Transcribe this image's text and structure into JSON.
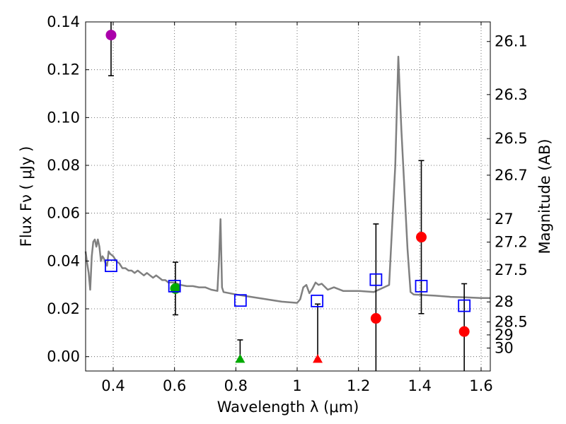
{
  "chart_data": {
    "type": "scatter",
    "title": "",
    "xlabel": "Wavelength  λ (μm)",
    "ylabel": "Flux  Fν  ( μJy )",
    "ylabel_right": "Magnitude (AB)",
    "xlim": [
      0.31,
      1.63
    ],
    "ylim": [
      -0.006,
      0.14
    ],
    "x_ticks": [
      0.4,
      0.6,
      0.8,
      1.0,
      1.2,
      1.4,
      1.6
    ],
    "x_tick_labels": [
      "0.4",
      "0.6",
      "0.8",
      "1",
      "1.2",
      "1.4",
      "1.6"
    ],
    "y_ticks": [
      0.0,
      0.02,
      0.04,
      0.06,
      0.08,
      0.1,
      0.12,
      0.14
    ],
    "y_tick_labels": [
      "0.00",
      "0.02",
      "0.04",
      "0.06",
      "0.08",
      "0.10",
      "0.12",
      "0.14"
    ],
    "mag_ticks": [
      {
        "label": "26.1",
        "flux": 0.1318
      },
      {
        "label": "26.3",
        "flux": 0.1096
      },
      {
        "label": "26.5",
        "flux": 0.0912
      },
      {
        "label": "26.7",
        "flux": 0.0759
      },
      {
        "label": "27",
        "flux": 0.0575
      },
      {
        "label": "27.2",
        "flux": 0.0479
      },
      {
        "label": "27.5",
        "flux": 0.0363
      },
      {
        "label": "28",
        "flux": 0.0229
      },
      {
        "label": "28.5",
        "flux": 0.0145
      },
      {
        "label": "29",
        "flux": 0.0091
      },
      {
        "label": "30",
        "flux": 0.0036
      }
    ],
    "grid": true,
    "colors": {
      "template": "#808080",
      "model": "#0000ff",
      "red": "#ff0000",
      "green": "#00aa00",
      "magenta": "#aa00aa",
      "errorbar": "#000000"
    },
    "template_spectrum": {
      "x": [
        0.31,
        0.315,
        0.32,
        0.325,
        0.33,
        0.335,
        0.34,
        0.345,
        0.35,
        0.355,
        0.36,
        0.365,
        0.37,
        0.375,
        0.38,
        0.385,
        0.39,
        0.4,
        0.41,
        0.42,
        0.43,
        0.44,
        0.45,
        0.46,
        0.47,
        0.48,
        0.49,
        0.5,
        0.51,
        0.52,
        0.53,
        0.54,
        0.55,
        0.56,
        0.57,
        0.58,
        0.59,
        0.6,
        0.62,
        0.64,
        0.66,
        0.68,
        0.7,
        0.72,
        0.74,
        0.745,
        0.75,
        0.755,
        0.76,
        0.8,
        0.85,
        0.9,
        0.95,
        1.0,
        1.01,
        1.02,
        1.03,
        1.04,
        1.05,
        1.06,
        1.07,
        1.08,
        1.1,
        1.12,
        1.15,
        1.2,
        1.25,
        1.3,
        1.32,
        1.33,
        1.34,
        1.36,
        1.37,
        1.38,
        1.45,
        1.5,
        1.55,
        1.6,
        1.63
      ],
      "y": [
        0.044,
        0.039,
        0.035,
        0.028,
        0.042,
        0.048,
        0.049,
        0.046,
        0.049,
        0.046,
        0.04,
        0.042,
        0.041,
        0.039,
        0.038,
        0.044,
        0.043,
        0.042,
        0.04,
        0.039,
        0.037,
        0.037,
        0.036,
        0.036,
        0.035,
        0.036,
        0.035,
        0.034,
        0.035,
        0.034,
        0.033,
        0.034,
        0.033,
        0.032,
        0.032,
        0.031,
        0.031,
        0.031,
        0.03,
        0.0295,
        0.0295,
        0.029,
        0.029,
        0.028,
        0.0275,
        0.04,
        0.0575,
        0.029,
        0.027,
        0.026,
        0.025,
        0.024,
        0.023,
        0.0225,
        0.024,
        0.029,
        0.03,
        0.0265,
        0.0285,
        0.031,
        0.03,
        0.0305,
        0.028,
        0.029,
        0.0275,
        0.0275,
        0.027,
        0.03,
        0.08,
        0.1255,
        0.095,
        0.045,
        0.027,
        0.026,
        0.0255,
        0.025,
        0.0248,
        0.0245,
        0.0245
      ]
    },
    "model_points": {
      "x": [
        0.393,
        0.6,
        0.815,
        1.065,
        1.257,
        1.405,
        1.545
      ],
      "y": [
        0.038,
        0.0295,
        0.0235,
        0.0233,
        0.0322,
        0.0295,
        0.0213
      ]
    },
    "observed_points": [
      {
        "x": 0.393,
        "y": 0.1345,
        "err_low": 0.1175,
        "err_high": 0.141,
        "color": "magenta",
        "marker": "circle"
      },
      {
        "x": 0.603,
        "y": 0.0285,
        "err_low": 0.0175,
        "err_high": 0.0395,
        "color": "green",
        "marker": "circle"
      },
      {
        "x": 0.814,
        "y": -0.001,
        "err_low": -0.001,
        "err_high": 0.007,
        "color": "green",
        "marker": "triangle"
      },
      {
        "x": 1.067,
        "y": -0.001,
        "err_low": -0.001,
        "err_high": 0.022,
        "color": "red",
        "marker": "triangle"
      },
      {
        "x": 1.257,
        "y": 0.016,
        "err_low": -0.006,
        "err_high": 0.0555,
        "color": "red",
        "marker": "circle"
      },
      {
        "x": 1.405,
        "y": 0.05,
        "err_low": 0.018,
        "err_high": 0.082,
        "color": "red",
        "marker": "circle"
      },
      {
        "x": 1.545,
        "y": 0.0105,
        "err_low": -0.006,
        "err_high": 0.0305,
        "color": "red",
        "marker": "circle"
      }
    ]
  }
}
